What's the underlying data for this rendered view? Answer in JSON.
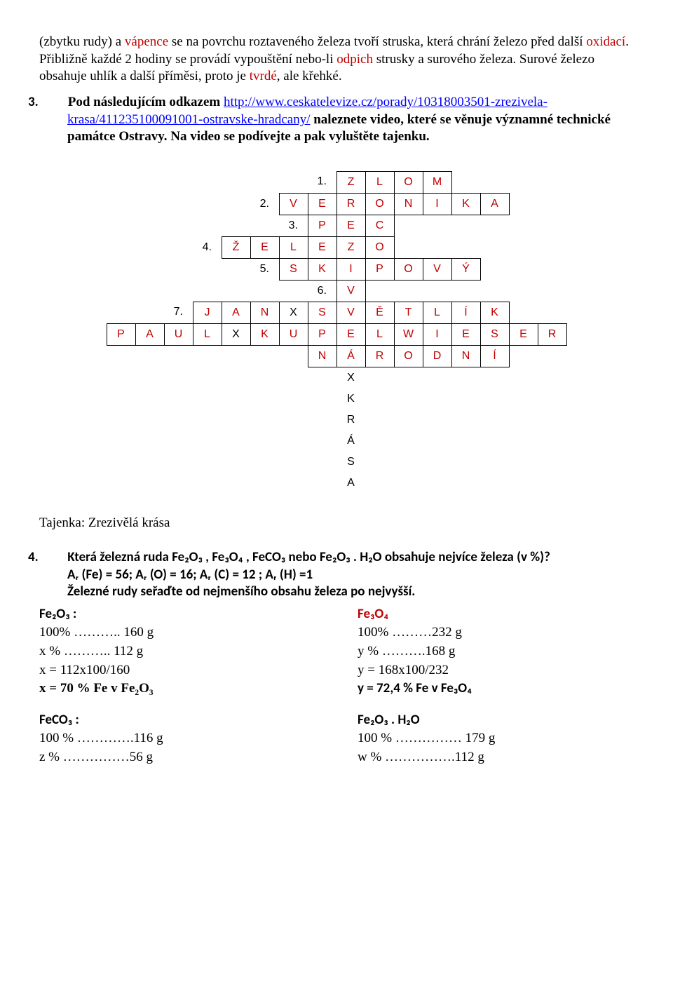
{
  "para1": {
    "t1": "(zbytku rudy) a ",
    "r1": "vápence",
    "t2": " se na povrchu roztaveného železa tvoří struska, která chrání železo před další ",
    "r2": "oxidací",
    "t3": ". Přibližně každé 2 hodiny se provádí vypouštění nebo-li ",
    "r3": "odpich",
    "t4": " strusky a surového železa. Surové železo obsahuje uhlík a další příměsi, proto je ",
    "r4": "tvrdé",
    "t5": ", ale křehké."
  },
  "item3": {
    "num": "3.",
    "lead": "Pod následujícím odkazem ",
    "url_part1": "http://www.ceskatelevize.cz/porady/10318003501-zrezivela-",
    "url_part2": "krasa/411235100091001-ostravske-hradcany/",
    "tail": " naleznete video, které se věnuje významné technické památce Ostravy. Na video se podívejte a pak vyluštěte tajenku."
  },
  "crossword": {
    "cell_border": "#000000",
    "red": "#c00000",
    "clues": [
      "1.",
      "2.",
      "3.",
      "4.",
      "5.",
      "6.",
      "7."
    ],
    "rows": [
      {
        "clueCol": 7,
        "clue": "1.",
        "cells": [
          {
            "c": 8,
            "v": "Z",
            "red": true
          },
          {
            "c": 9,
            "v": "L",
            "red": true
          },
          {
            "c": 10,
            "v": "O",
            "red": true
          },
          {
            "c": 11,
            "v": "M",
            "red": true
          }
        ]
      },
      {
        "clueCol": 5,
        "clue": "2.",
        "cells": [
          {
            "c": 6,
            "v": "V",
            "red": true
          },
          {
            "c": 7,
            "v": "E",
            "red": true
          },
          {
            "c": 8,
            "v": "R",
            "red": true
          },
          {
            "c": 9,
            "v": "O",
            "red": true
          },
          {
            "c": 10,
            "v": "N",
            "red": true
          },
          {
            "c": 11,
            "v": "I",
            "red": true
          },
          {
            "c": 12,
            "v": "K",
            "red": true
          },
          {
            "c": 13,
            "v": "A",
            "red": true
          }
        ]
      },
      {
        "clueCol": 6,
        "clue": "3.",
        "cells": [
          {
            "c": 7,
            "v": "P",
            "red": true
          },
          {
            "c": 8,
            "v": "E",
            "red": true
          },
          {
            "c": 9,
            "v": "C",
            "red": true
          }
        ]
      },
      {
        "clueCol": 3,
        "clue": "4.",
        "cells": [
          {
            "c": 4,
            "v": "Ž",
            "red": true
          },
          {
            "c": 5,
            "v": "E",
            "red": true
          },
          {
            "c": 6,
            "v": "L",
            "red": true
          },
          {
            "c": 7,
            "v": "E",
            "red": true
          },
          {
            "c": 8,
            "v": "Z",
            "red": true
          },
          {
            "c": 9,
            "v": "O",
            "red": true
          }
        ]
      },
      {
        "clueCol": 5,
        "clue": "5.",
        "cells": [
          {
            "c": 6,
            "v": "S",
            "red": true
          },
          {
            "c": 7,
            "v": "K",
            "red": true
          },
          {
            "c": 8,
            "v": "I",
            "red": true
          },
          {
            "c": 9,
            "v": "P",
            "red": true
          },
          {
            "c": 10,
            "v": "O",
            "red": true
          },
          {
            "c": 11,
            "v": "V",
            "red": true
          },
          {
            "c": 12,
            "v": "Ý",
            "red": true
          }
        ]
      },
      {
        "clueCol": 7,
        "clue": "6.",
        "cells": [
          {
            "c": 8,
            "v": "V",
            "red": true
          }
        ]
      },
      {
        "clueCol": 2,
        "clue": "7.",
        "cells": [
          {
            "c": 3,
            "v": "J",
            "red": true
          },
          {
            "c": 4,
            "v": "A",
            "red": true
          },
          {
            "c": 5,
            "v": "N",
            "red": true
          },
          {
            "c": 6,
            "v": "X",
            "red": false
          },
          {
            "c": 7,
            "v": "S",
            "red": true
          },
          {
            "c": 8,
            "v": "V",
            "red": true
          },
          {
            "c": 9,
            "v": "Ě",
            "red": true
          },
          {
            "c": 10,
            "v": "T",
            "red": true
          },
          {
            "c": 11,
            "v": "L",
            "red": true
          },
          {
            "c": 12,
            "v": "Í",
            "red": true
          },
          {
            "c": 13,
            "v": "K",
            "red": true
          }
        ]
      },
      {
        "clueCol": -1,
        "clue": "",
        "cells": [
          {
            "c": 0,
            "v": "P",
            "red": true
          },
          {
            "c": 1,
            "v": "A",
            "red": true
          },
          {
            "c": 2,
            "v": "U",
            "red": true
          },
          {
            "c": 3,
            "v": "L",
            "red": true
          },
          {
            "c": 4,
            "v": "X",
            "red": false
          },
          {
            "c": 5,
            "v": "K",
            "red": true
          },
          {
            "c": 6,
            "v": "U",
            "red": true
          },
          {
            "c": 7,
            "v": "P",
            "red": true
          },
          {
            "c": 8,
            "v": "E",
            "red": true
          },
          {
            "c": 9,
            "v": "L",
            "red": true
          },
          {
            "c": 10,
            "v": "W",
            "red": true
          },
          {
            "c": 11,
            "v": "I",
            "red": true
          },
          {
            "c": 12,
            "v": "E",
            "red": true
          },
          {
            "c": 13,
            "v": "S",
            "red": true
          },
          {
            "c": 14,
            "v": "E",
            "red": true
          },
          {
            "c": 15,
            "v": "R",
            "red": true
          }
        ]
      },
      {
        "clueCol": -1,
        "clue": "",
        "cells": [
          {
            "c": 7,
            "v": "N",
            "red": true
          },
          {
            "c": 8,
            "v": "Á",
            "red": true
          },
          {
            "c": 9,
            "v": "R",
            "red": true
          },
          {
            "c": 10,
            "v": "O",
            "red": true
          },
          {
            "c": 11,
            "v": "D",
            "red": true
          },
          {
            "c": 12,
            "v": "N",
            "red": true
          },
          {
            "c": 13,
            "v": "Í",
            "red": true
          }
        ]
      }
    ],
    "tajenka_col": 8,
    "tajenka_tail": [
      "X",
      "K",
      "R",
      "Á",
      "S",
      "A"
    ]
  },
  "tajenka_label": "Tajenka: Zrezivělá krása",
  "item4": {
    "num": "4.",
    "line1": "Která železná ruda Fe₂O₃ , Fe₃O₄ , FeCO₃  nebo Fe₂O₃ . H₂O obsahuje nejvíce železa (v %)?",
    "line2": "Aᵣ (Fe) = 56; Aᵣ (O) = 16; Aᵣ (C) = 12 ; Aᵣ (H) =1",
    "line3": "Železné rudy seřaďte od nejmenšího obsahu železa po nejvyšší."
  },
  "calc": {
    "left_head": "Fe₂O₃ :",
    "right_head": "Fe₃O₄",
    "l1a": "100% ……….. 160 g",
    "r1a": "100% ………232 g",
    "l2a": " x % ……….. 112 g",
    "r2a": " y % ……….168 g",
    "l3a": "x = 112x100/160",
    "r3a": "y = 168x100/232",
    "l4a": "x = 70 % Fe v Fe₂O₃",
    "r4a": "y = 72,4 % Fe v Fe₃O₄",
    "left_head2": "FeCO₃ :",
    "right_head2": "Fe₂O₃ . H₂O",
    "l1b": "100 % ………….116 g",
    "r1b": "100 % …………… 179 g",
    "l2b": "  z % ……………56  g",
    "r2b": "  w % …………….112 g"
  }
}
